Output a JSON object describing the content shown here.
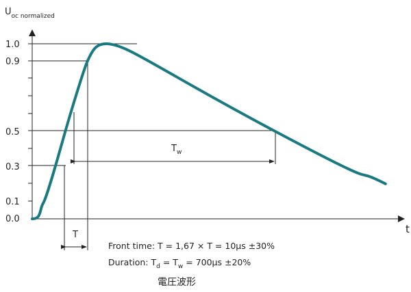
{
  "chart_data": {
    "type": "line",
    "title": "",
    "caption": "電圧波形",
    "xlabel": "t",
    "ylabel_main": "U",
    "ylabel_sub": "oc normalized",
    "y_ticks": [
      "1.0",
      "0.9",
      "0.5",
      "0.3",
      "0.1",
      "0.0"
    ],
    "ylim": [
      0,
      1.0
    ],
    "grid": false,
    "line_color": "#1a7a80",
    "series": [
      {
        "values": [
          {
            "x": 0,
            "y": 0.0
          },
          {
            "x": 0.2,
            "y": 0.09
          },
          {
            "x": 0.6,
            "y": 0.5
          },
          {
            "x": 1.0,
            "y": 0.9
          },
          {
            "x": 1.34,
            "y": 1.0
          },
          {
            "x": 4.4,
            "y": 0.5
          },
          {
            "x": 6.4,
            "y": 0.2
          }
        ]
      }
    ],
    "annotations": {
      "tw_label_main": "T",
      "tw_label_sub": "w",
      "t_label": "T",
      "front_time": "Front time: T = 1,67 × T = 10μs ±30%",
      "duration_pre": "Duration: T",
      "duration_sub_d": "d",
      "duration_mid": " = T",
      "duration_sub_w": "w",
      "duration_post": " = 700μs ±20%"
    }
  }
}
